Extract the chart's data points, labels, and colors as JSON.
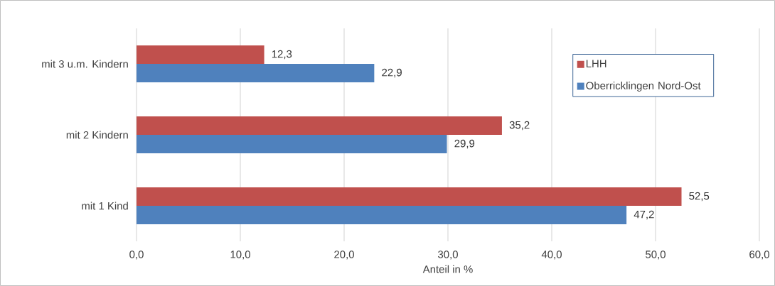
{
  "chart_data": {
    "type": "bar",
    "orientation": "horizontal",
    "categories": [
      "mit 3 u.m. Kindern",
      "mit 2 Kindern",
      "mit 1 Kind"
    ],
    "series": [
      {
        "name": "LHH",
        "color": "#c0504d",
        "values": [
          12.3,
          35.2,
          52.5
        ],
        "value_labels": [
          "12,3",
          "35,2",
          "52,5"
        ]
      },
      {
        "name": "Oberricklingen Nord-Ost",
        "color": "#4f81bd",
        "values": [
          22.9,
          29.9,
          47.2
        ],
        "value_labels": [
          "22,9",
          "29,9",
          "47,2"
        ]
      }
    ],
    "xlabel": "Anteil in %",
    "xlim": [
      0,
      60
    ],
    "xticks": [
      {
        "value": 0,
        "label": "0,0"
      },
      {
        "value": 10,
        "label": "10,0"
      },
      {
        "value": 20,
        "label": "20,0"
      },
      {
        "value": 30,
        "label": "30,0"
      },
      {
        "value": 40,
        "label": "40,0"
      },
      {
        "value": 50,
        "label": "50,0"
      },
      {
        "value": 60,
        "label": "60,0"
      }
    ],
    "grid": "x",
    "legend": "top right"
  }
}
